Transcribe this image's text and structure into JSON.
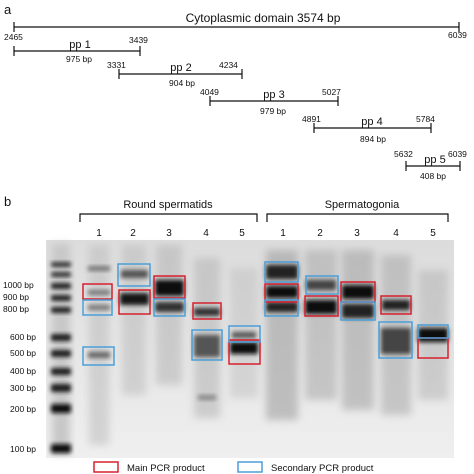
{
  "panel_a": {
    "letter": "a",
    "domain_label": "Cytoplasmic domain 3574 bp",
    "domain_start": "2465",
    "domain_end": "6039",
    "fragments": [
      {
        "name": "pp 1",
        "start": "2465",
        "end": "3439",
        "size": "975 bp"
      },
      {
        "name": "pp 2",
        "start": "3331",
        "end": "4234",
        "size": "904 bp"
      },
      {
        "name": "pp 3",
        "start": "4049",
        "end": "5027",
        "size": "979 bp"
      },
      {
        "name": "pp 4",
        "start": "4891",
        "end": "5784",
        "size": "894 bp"
      },
      {
        "name": "pp 5",
        "start": "5632",
        "end": "6039",
        "size": "408 bp"
      }
    ]
  },
  "panel_b": {
    "letter": "b",
    "group1": "Round spermatids",
    "group2": "Spermatogonia",
    "lanes1": [
      "1",
      "2",
      "3",
      "4",
      "5"
    ],
    "lanes2": [
      "1",
      "2",
      "3",
      "4",
      "5"
    ],
    "ladder": [
      "1000 bp",
      "900 bp",
      "800 bp",
      "600 bp",
      "500 bp",
      "400 bp",
      "300 bp",
      "200 bp",
      "100 bp"
    ],
    "legend": {
      "main": "Main PCR product",
      "secondary": "Secondary PCR product",
      "main_color": "#d6202e",
      "secondary_color": "#4a9fd8"
    }
  }
}
